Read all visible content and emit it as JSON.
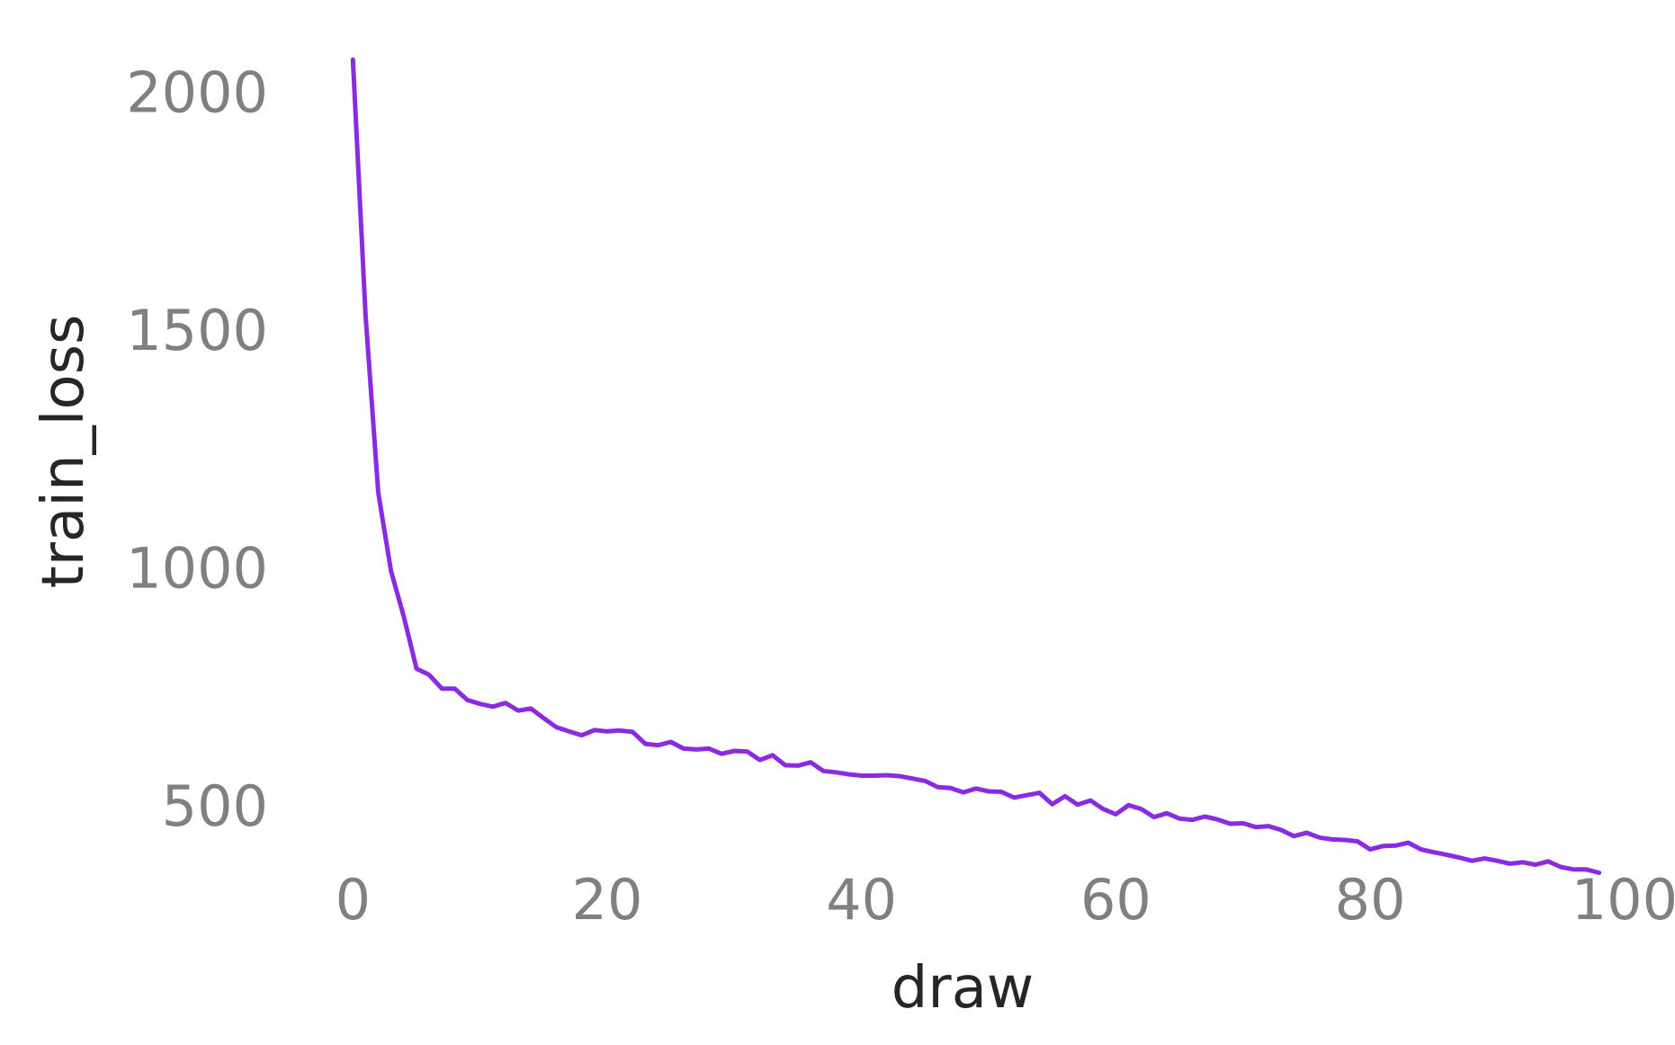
{
  "chart_data": {
    "type": "line",
    "title": "",
    "xlabel": "draw",
    "ylabel": "train_loss",
    "xlim": [
      -2,
      101
    ],
    "ylim": [
      375,
      2080
    ],
    "xticks": [
      0,
      20,
      40,
      60,
      80,
      100
    ],
    "yticks": [
      500,
      1000,
      1500,
      2000
    ],
    "grid": false,
    "line_color": "#8a2be2",
    "series": [
      {
        "values": [
          2068,
          1530,
          1158,
          993,
          898,
          788,
          775,
          746,
          746,
          722,
          714,
          708,
          716,
          700,
          704,
          684,
          665,
          656,
          648,
          659,
          656,
          658,
          655,
          630,
          627,
          634,
          620,
          618,
          620,
          609,
          615,
          614,
          596,
          606,
          585,
          584,
          591,
          573,
          570,
          566,
          563,
          563,
          564,
          562,
          557,
          552,
          539,
          537,
          528,
          536,
          530,
          529,
          517,
          522,
          527,
          503,
          520,
          502,
          511,
          493,
          482,
          501,
          493,
          476,
          484,
          473,
          470,
          477,
          471,
          462,
          463,
          455,
          457,
          449,
          436,
          443,
          433,
          429,
          428,
          425,
          408,
          415,
          416,
          422,
          408,
          402,
          397,
          391,
          384,
          389,
          384,
          378,
          381,
          376,
          383,
          371,
          366,
          366,
          359
        ]
      }
    ]
  }
}
